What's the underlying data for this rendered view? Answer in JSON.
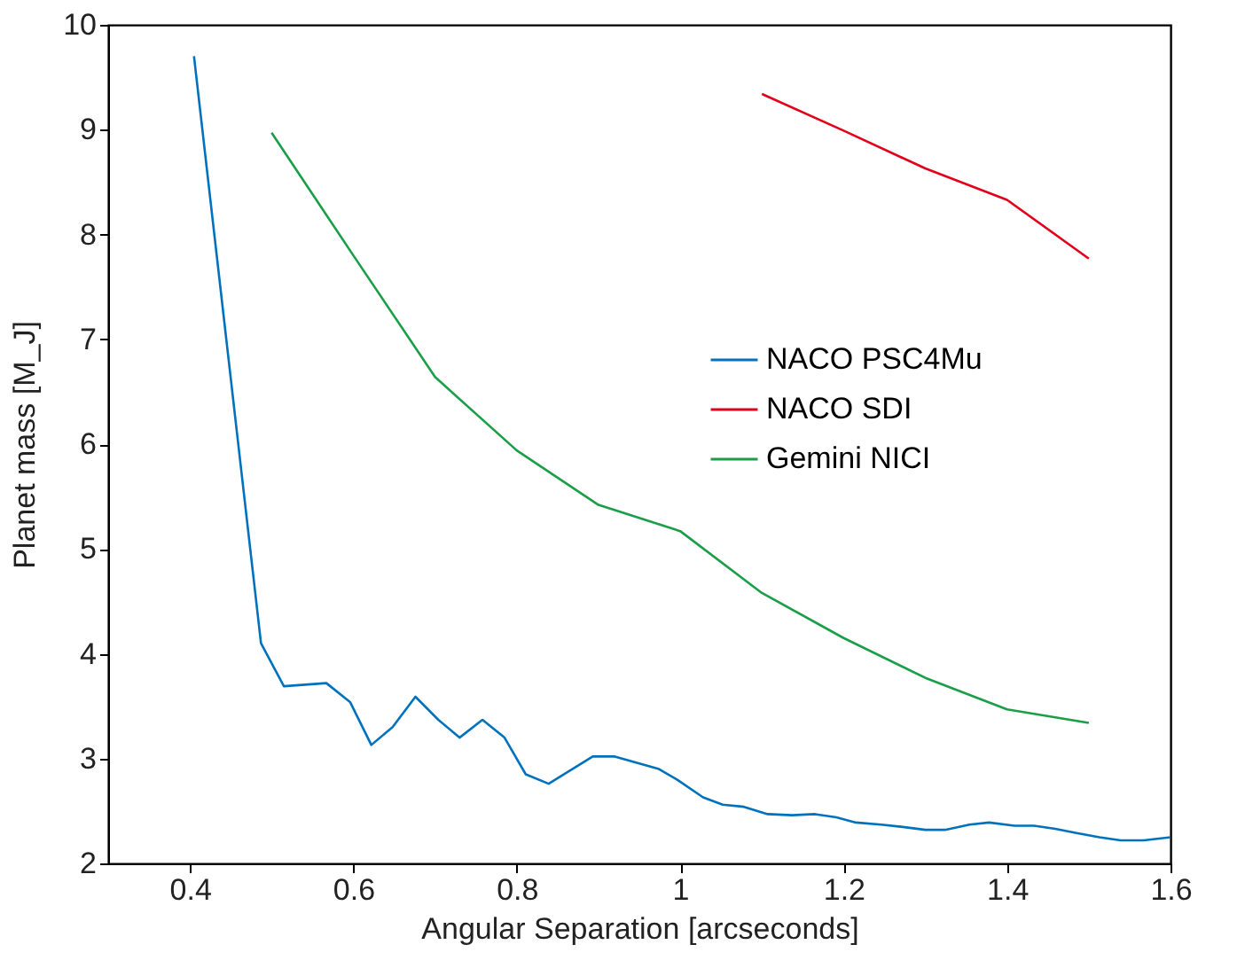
{
  "chart_data": {
    "type": "line",
    "xlabel": "Angular Separation [arcseconds]",
    "ylabel": "Planet mass [M_J]",
    "xlim": [
      0.3,
      1.6
    ],
    "xticks": [
      0.4,
      0.6,
      0.8,
      1,
      1.2,
      1.4,
      1.6
    ],
    "ylim": [
      2,
      10
    ],
    "yticks": [
      2,
      3,
      4,
      5,
      6,
      7,
      8,
      9,
      10
    ],
    "grid": false,
    "legend": "right",
    "line_style": "solid",
    "marker": "none",
    "series": [
      {
        "name": "NACO PSC4Mu",
        "color": "#0072bd",
        "x": [
          0.405,
          0.487,
          0.515,
          0.567,
          0.596,
          0.622,
          0.648,
          0.676,
          0.704,
          0.73,
          0.758,
          0.785,
          0.811,
          0.839,
          0.893,
          0.92,
          0.974,
          0.996,
          1.028,
          1.052,
          1.078,
          1.107,
          1.137,
          1.165,
          1.191,
          1.215,
          1.246,
          1.27,
          1.3,
          1.324,
          1.354,
          1.378,
          1.409,
          1.433,
          1.459,
          1.485,
          1.513,
          1.539,
          1.567,
          1.6
        ],
        "values": [
          9.7,
          4.1,
          3.69,
          3.72,
          3.54,
          3.13,
          3.3,
          3.59,
          3.37,
          3.2,
          3.37,
          3.2,
          2.85,
          2.76,
          3.02,
          3.02,
          2.9,
          2.8,
          2.63,
          2.56,
          2.54,
          2.47,
          2.46,
          2.47,
          2.44,
          2.39,
          2.37,
          2.35,
          2.32,
          2.32,
          2.37,
          2.39,
          2.36,
          2.36,
          2.33,
          2.29,
          2.25,
          2.22,
          2.22,
          2.25
        ]
      },
      {
        "name": "NACO SDI",
        "color": "#e2001a",
        "x": [
          1.1,
          1.2,
          1.3,
          1.4,
          1.5
        ],
        "values": [
          9.34,
          8.99,
          8.63,
          8.33,
          7.77
        ]
      },
      {
        "name": "Gemini NICI",
        "color": "#1a9e48",
        "x": [
          0.5,
          0.6,
          0.7,
          0.8,
          0.9,
          1.0,
          1.1,
          1.2,
          1.3,
          1.4,
          1.5
        ],
        "values": [
          8.97,
          7.8,
          6.64,
          5.94,
          5.42,
          5.17,
          4.58,
          4.15,
          3.77,
          3.47,
          3.34
        ]
      }
    ]
  }
}
